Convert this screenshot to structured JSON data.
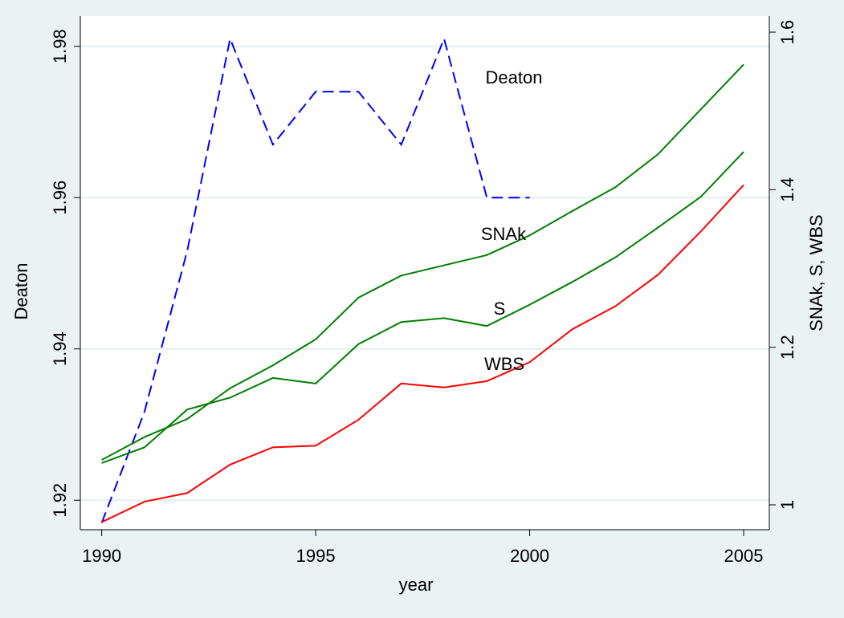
{
  "chart_data": {
    "type": "line",
    "x": [
      1990,
      1991,
      1992,
      1993,
      1994,
      1995,
      1996,
      1997,
      1998,
      1999,
      2000,
      2001,
      2002,
      2003,
      2004,
      2005
    ],
    "xlabel": "year",
    "ylabel": "Deaton",
    "y2label": "SNAk, S, WBS",
    "xlim": [
      1989.5,
      2005.6
    ],
    "xticks": [
      1990,
      1995,
      2000,
      2005
    ],
    "ylim": [
      1.9161,
      1.984
    ],
    "yticks": [
      1.92,
      1.94,
      1.96,
      1.98
    ],
    "y2lim": [
      0.9684,
      1.6204
    ],
    "y2ticks": [
      1,
      1.2,
      1.4,
      1.6
    ],
    "grid": true,
    "series": [
      {
        "name": "Deaton",
        "color": "#0000ff",
        "dashed": true,
        "axis": "y",
        "values": [
          1.917,
          1.9317,
          1.953,
          1.981,
          1.967,
          1.974,
          1.974,
          1.967,
          1.981,
          1.96,
          1.96,
          null,
          null,
          null,
          null,
          null
        ]
      },
      {
        "name": "SNAk",
        "color": "#007f00",
        "dashed": false,
        "axis": "y2",
        "values": [
          1.057,
          1.086,
          1.109,
          1.148,
          1.177,
          1.21,
          1.263,
          1.291,
          1.304,
          1.317,
          1.342,
          1.373,
          1.403,
          1.445,
          1.502,
          1.559
        ]
      },
      {
        "name": "S",
        "color": "#007f00",
        "dashed": false,
        "axis": "y2",
        "values": [
          1.053,
          1.073,
          1.121,
          1.136,
          1.161,
          1.154,
          1.204,
          1.232,
          1.237,
          1.227,
          1.254,
          1.283,
          1.314,
          1.352,
          1.391,
          1.448
        ]
      },
      {
        "name": "WBS",
        "color": "#ff0000",
        "dashed": false,
        "axis": "y2",
        "values": [
          0.978,
          1.004,
          1.015,
          1.051,
          1.073,
          1.075,
          1.108,
          1.154,
          1.149,
          1.157,
          1.181,
          1.223,
          1.252,
          1.292,
          1.347,
          1.406
        ]
      }
    ]
  }
}
